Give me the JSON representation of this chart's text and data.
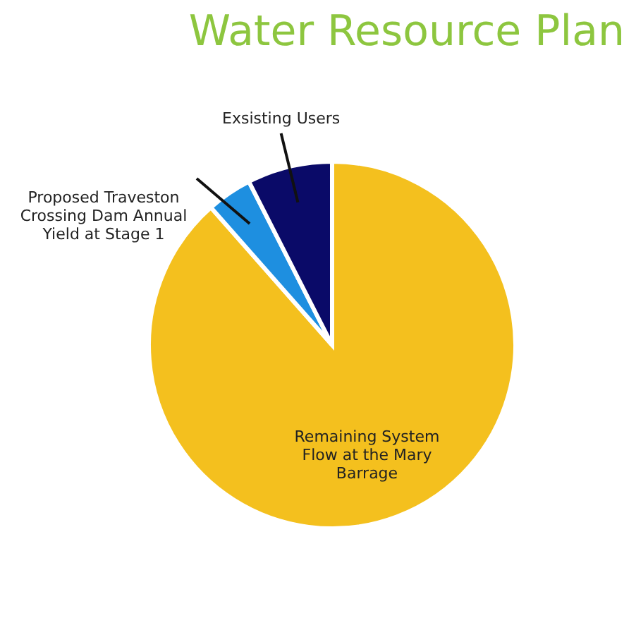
{
  "chart_data": {
    "type": "pie",
    "title": "Water Resource Plan",
    "categories": [
      "Remaining System Flow at the Mary Barrage",
      "Proposed Traveston Crossing Dam Annual Yield at Stage 1",
      "Exsisting Users"
    ],
    "values": [
      88.5,
      4,
      7.5
    ],
    "colors": [
      "#f4c01e",
      "#1e8fe0",
      "#0a0a68"
    ],
    "legend": false
  }
}
